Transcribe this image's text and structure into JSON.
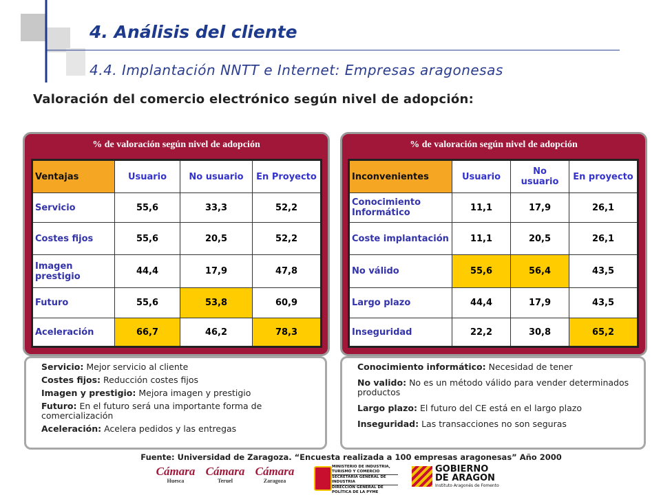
{
  "header": {
    "title": "4. Análisis del cliente",
    "subtitle": "4.4. Implantación NNTT e Internet: Empresas aragonesas"
  },
  "heading": "Valoración del comercio electrónico según nivel de adopción:",
  "panels": [
    {
      "caption": "% de valoración según nivel de adopción",
      "table": {
        "header": [
          "Ventajas",
          "Usuario",
          "No usuario",
          "En Proyecto"
        ],
        "rows": [
          [
            "Servicio",
            "55,6",
            "33,3",
            "52,2"
          ],
          [
            "Costes fijos",
            "55,6",
            "20,5",
            "52,2"
          ],
          [
            "Imagen prestigio",
            "44,4",
            "17,9",
            "47,8"
          ],
          [
            "Futuro",
            "55,6",
            "53,8",
            "60,9"
          ],
          [
            "Aceleración",
            "66,7",
            "46,2",
            "78,3"
          ]
        ]
      },
      "notes": [
        {
          "term": "Servicio:",
          "text": "Mejor servicio al cliente"
        },
        {
          "term": "Costes fijos:",
          "text": "Reducción costes fijos"
        },
        {
          "term": "Imagen y prestigio:",
          "text": "Mejora imagen y prestigio"
        },
        {
          "term": "Futuro:",
          "text": "En el futuro será una importante  forma de comercialización"
        },
        {
          "term": "Aceleración:",
          "text": "Acelera pedidos y las entregas"
        }
      ]
    },
    {
      "caption": "% de valoración según nivel de adopción",
      "table": {
        "header": [
          "Inconvenientes",
          "Usuario",
          "No usuario",
          "En proyecto"
        ],
        "rows": [
          [
            "Conocimiento Informático",
            "11,1",
            "17,9",
            "26,1"
          ],
          [
            "Coste implantación",
            "11,1",
            "20,5",
            "26,1"
          ],
          [
            "No válido",
            "55,6",
            "56,4",
            "43,5"
          ],
          [
            "Largo plazo",
            "44,4",
            "17,9",
            "43,5"
          ],
          [
            "Inseguridad",
            "22,2",
            "30,8",
            "65,2"
          ]
        ]
      },
      "notes": [
        {
          "term": "Conocimiento informático:",
          "text": "Necesidad de tener"
        },
        {
          "term": "No valido:",
          "text": "No es un método válido para vender determinados productos"
        },
        {
          "term": "Largo plazo:",
          "text": "El futuro del CE está en el largo plazo"
        },
        {
          "term": "Inseguridad:",
          "text": "Las transacciones no son seguras"
        }
      ]
    }
  ],
  "source": "Fuente: Universidad de Zaragoza. “Encuesta realizada a 100 empresas aragonesas” Año 2000",
  "logos": {
    "camaras": [
      {
        "name": "Cámara",
        "city": "Huesca"
      },
      {
        "name": "Cámara",
        "city": "Teruel"
      },
      {
        "name": "Cámara",
        "city": "Zaragoza"
      }
    ],
    "ministry": [
      "MINISTERIO DE INDUSTRIA, TURISMO Y COMERCIO",
      "SECRETARÍA GENERAL DE INDUSTRIA",
      "DIRECCIÓN GENERAL DE POLÍTICA DE LA PYME"
    ],
    "government": [
      "GOBIERNO",
      "DE ARAGON",
      "Instituto Aragonés de Fomento"
    ]
  }
}
